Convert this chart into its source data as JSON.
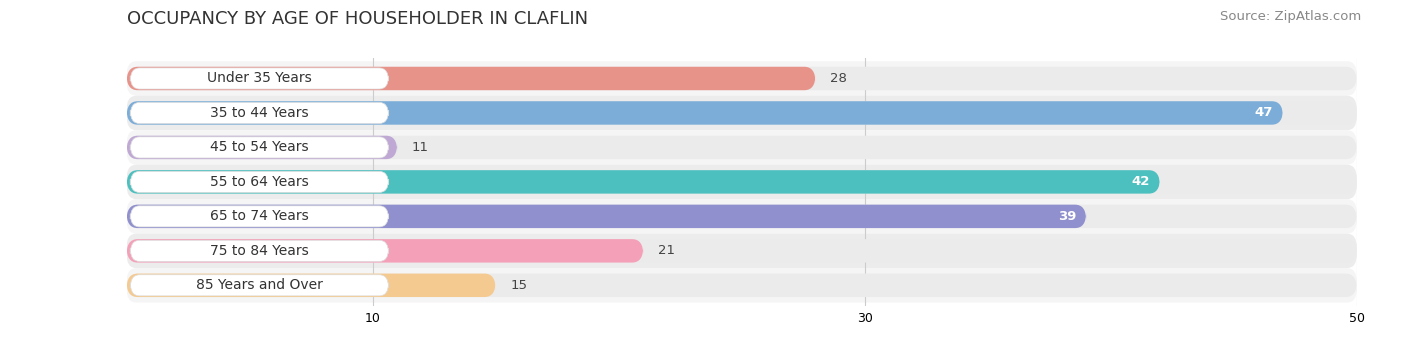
{
  "title": "OCCUPANCY BY AGE OF HOUSEHOLDER IN CLAFLIN",
  "source": "Source: ZipAtlas.com",
  "categories": [
    "Under 35 Years",
    "35 to 44 Years",
    "45 to 54 Years",
    "55 to 64 Years",
    "65 to 74 Years",
    "75 to 84 Years",
    "85 Years and Over"
  ],
  "values": [
    28,
    47,
    11,
    42,
    39,
    21,
    15
  ],
  "bar_colors": [
    "#E8938A",
    "#7BADD8",
    "#BFA8D4",
    "#4CBFBF",
    "#9090CE",
    "#F4A0B8",
    "#F5CA90"
  ],
  "bar_bg_color": "#EBEBEB",
  "xlim": [
    0,
    50
  ],
  "xticks": [
    10,
    30,
    50
  ],
  "bar_height": 0.68,
  "title_fontsize": 13,
  "source_fontsize": 9.5,
  "label_fontsize": 10,
  "value_fontsize": 9.5,
  "fig_bg_color": "#FFFFFF",
  "axes_bg_color": "#FFFFFF",
  "grid_color": "#CCCCCC",
  "label_pill_color": "#FFFFFF",
  "label_text_color": "#333333",
  "row_bg_colors": [
    "#F8F8F8",
    "#F0F0F0"
  ]
}
